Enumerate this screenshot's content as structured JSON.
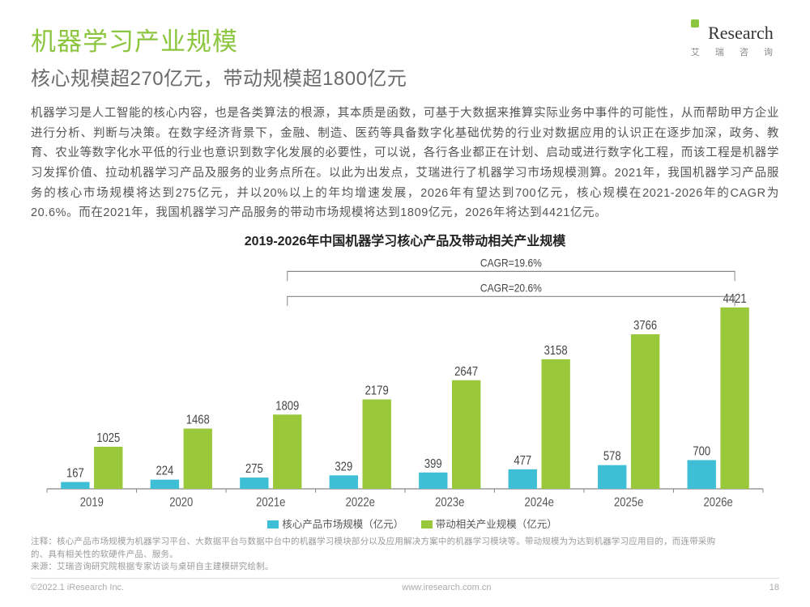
{
  "header": {
    "title": "机器学习产业规模",
    "subtitle": "核心规模超270亿元，带动规模超1800亿元"
  },
  "logo": {
    "main": "Research",
    "cn": "艾 瑞 咨 询"
  },
  "body": "机器学习是人工智能的核心内容，也是各类算法的根源，其本质是函数，可基于大数据来推算实际业务中事件的可能性，从而帮助甲方企业进行分析、判断与决策。在数字经济背景下，金融、制造、医药等具备数字化基础优势的行业对数据应用的认识正在逐步加深，政务、教育、农业等数字化水平低的行业也意识到数字化发展的必要性，可以说，各行各业都正在计划、启动或进行数字化工程，而该工程是机器学习发挥价值、拉动机器学习产品及服务的业务点所在。以此为出发点，艾瑞进行了机器学习市场规模测算。2021年，我国机器学习产品服务的核心市场规模将达到275亿元，并以20%以上的年均增速发展，2026年有望达到700亿元，核心规模在2021-2026年的CAGR为20.6%。而在2021年，我国机器学习产品服务的带动市场规模将达到1809亿元，2026年将达到4421亿元。",
  "chart": {
    "title": "2019-2026年中国机器学习核心产品及带动相关产业规模",
    "categories": [
      "2019",
      "2020",
      "2021e",
      "2022e",
      "2023e",
      "2024e",
      "2025e",
      "2026e"
    ],
    "series": {
      "core": {
        "name": "核心产品市场规模（亿元）",
        "color": "#3fbfd6",
        "values": [
          167,
          224,
          275,
          329,
          399,
          477,
          578,
          700
        ]
      },
      "related": {
        "name": "带动相关产业规模（亿元）",
        "color": "#9ac83b",
        "values": [
          1025,
          1468,
          1809,
          2179,
          2647,
          3158,
          3766,
          4421
        ]
      }
    },
    "ylim": [
      0,
      4500
    ],
    "bar_width": 0.32,
    "bar_gap": 0.05,
    "cagr1": {
      "label": "CAGR=19.6%",
      "fromIdx": 2,
      "toIdx": 7
    },
    "cagr2": {
      "label": "CAGR=20.6%",
      "fromIdx": 2,
      "toIdx": 7
    },
    "value_fontsize": 13,
    "cat_fontsize": 13,
    "axis_color": "#888888",
    "grid_color": "#dddddd",
    "background": "#ffffff"
  },
  "footnote": {
    "line1": "注释：核心产品市场规模为机器学习平台、大数据平台与数据中台中的机器学习模块部分以及应用解决方案中的机器学习模块等。带动规模为为达到机器学习应用目的，而连带采购",
    "line2": "的、具有相关性的软硬件产品、服务。",
    "src": "来源：艾瑞咨询研究院根据专家访谈与桌研自主建模研究绘制。"
  },
  "footer": {
    "copyright": "©2022.1 iResearch Inc.",
    "site": "www.iresearch.com.cn",
    "page": "18"
  }
}
